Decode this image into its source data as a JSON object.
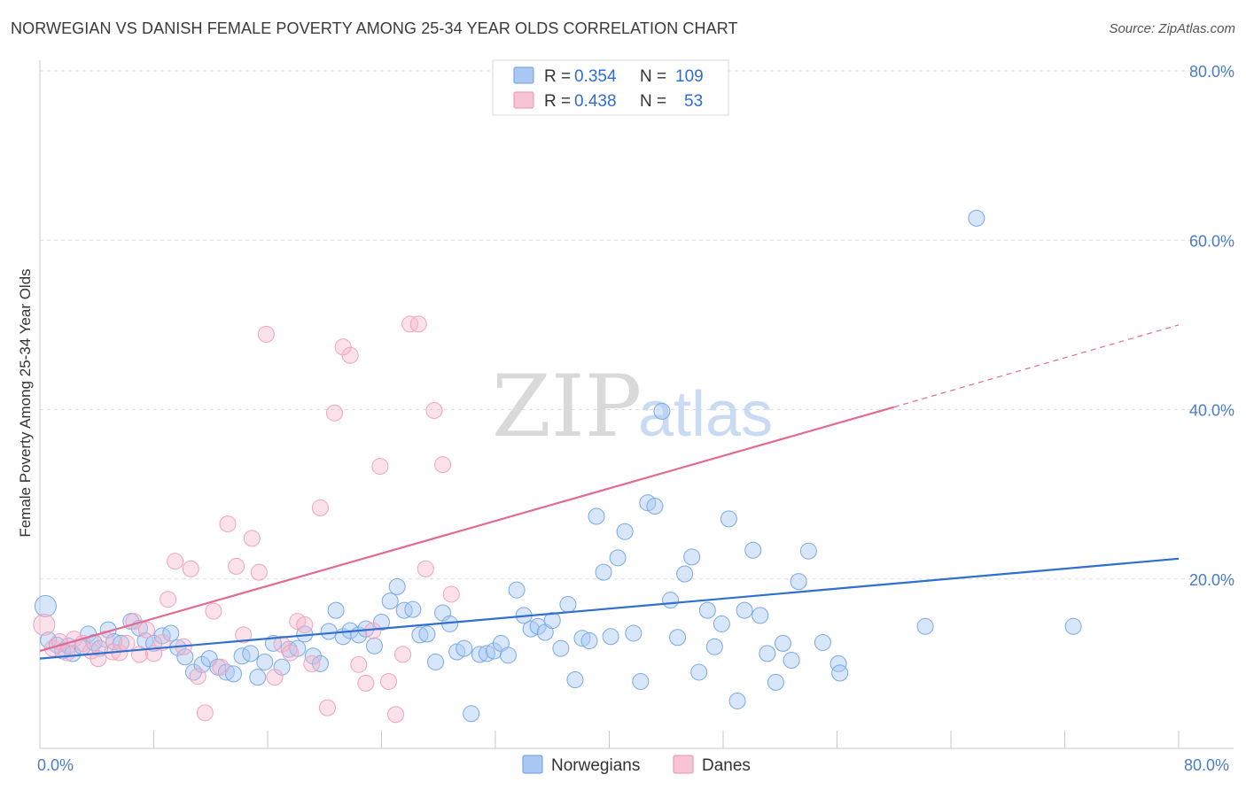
{
  "title": "NORWEGIAN VS DANISH FEMALE POVERTY AMONG 25-34 YEAR OLDS CORRELATION CHART",
  "source": "Source: ZipAtlas.com",
  "watermark": {
    "zip": "ZIP",
    "atlas": "atlas"
  },
  "chart_data": {
    "type": "scatter",
    "ylabel": "Female Poverty Among 25-34 Year Olds",
    "xlim": [
      0,
      80
    ],
    "ylim": [
      0,
      80
    ],
    "x_tick_labels": [
      "0.0%",
      "80.0%"
    ],
    "y_ticks": [
      20,
      40,
      60,
      80
    ],
    "y_tick_labels": [
      "20.0%",
      "40.0%",
      "60.0%",
      "80.0%"
    ],
    "grid": true,
    "legend_top": [
      {
        "r_label": "R =",
        "r_value": "0.354",
        "n_label": "N =",
        "n_value": "109",
        "color": "#a9c8f3"
      },
      {
        "r_label": "R =",
        "r_value": "0.438",
        "n_label": "N =",
        "n_value": "53",
        "color": "#f6b6cb"
      }
    ],
    "series": [
      {
        "name": "Norwegians",
        "color": "#7aa9e6",
        "line_color": "#2f6fd0",
        "trend": {
          "x0": 0,
          "y0": 10.6,
          "x1": 80,
          "y1": 22.4
        },
        "points": [
          [
            0.4,
            16.8
          ],
          [
            0.6,
            12.8
          ],
          [
            1.2,
            12.2
          ],
          [
            1.6,
            11.5
          ],
          [
            2.0,
            12.1
          ],
          [
            2.3,
            11.2
          ],
          [
            3.0,
            12.0
          ],
          [
            3.4,
            13.5
          ],
          [
            3.8,
            12.5
          ],
          [
            4.2,
            11.8
          ],
          [
            4.8,
            14.0
          ],
          [
            5.2,
            12.6
          ],
          [
            5.7,
            12.4
          ],
          [
            6.4,
            15.0
          ],
          [
            7.0,
            14.2
          ],
          [
            7.4,
            12.7
          ],
          [
            8.0,
            12.4
          ],
          [
            8.6,
            13.3
          ],
          [
            9.2,
            13.6
          ],
          [
            9.7,
            11.9
          ],
          [
            10.2,
            10.8
          ],
          [
            10.8,
            9.0
          ],
          [
            11.4,
            9.9
          ],
          [
            11.9,
            10.6
          ],
          [
            12.5,
            9.6
          ],
          [
            13.1,
            9.0
          ],
          [
            13.6,
            8.8
          ],
          [
            14.2,
            10.9
          ],
          [
            14.8,
            11.2
          ],
          [
            15.3,
            8.4
          ],
          [
            15.8,
            10.2
          ],
          [
            16.4,
            12.4
          ],
          [
            17.0,
            9.6
          ],
          [
            17.5,
            11.7
          ],
          [
            18.1,
            11.8
          ],
          [
            18.6,
            13.5
          ],
          [
            19.2,
            10.9
          ],
          [
            19.7,
            10.0
          ],
          [
            20.3,
            13.8
          ],
          [
            20.8,
            16.3
          ],
          [
            21.3,
            13.2
          ],
          [
            21.8,
            13.9
          ],
          [
            22.4,
            13.4
          ],
          [
            22.9,
            14.1
          ],
          [
            23.5,
            12.1
          ],
          [
            24.0,
            14.9
          ],
          [
            24.6,
            17.4
          ],
          [
            25.1,
            19.1
          ],
          [
            25.6,
            16.3
          ],
          [
            26.2,
            16.4
          ],
          [
            26.7,
            13.4
          ],
          [
            27.2,
            13.5
          ],
          [
            27.8,
            10.2
          ],
          [
            28.3,
            16.0
          ],
          [
            28.8,
            14.7
          ],
          [
            29.3,
            11.4
          ],
          [
            29.8,
            11.8
          ],
          [
            30.3,
            4.1
          ],
          [
            30.9,
            11.1
          ],
          [
            31.4,
            11.2
          ],
          [
            31.9,
            11.5
          ],
          [
            32.4,
            12.4
          ],
          [
            32.9,
            11.0
          ],
          [
            33.5,
            18.7
          ],
          [
            34.0,
            15.7
          ],
          [
            34.5,
            14.1
          ],
          [
            35.0,
            14.4
          ],
          [
            35.5,
            13.7
          ],
          [
            36.0,
            15.1
          ],
          [
            36.6,
            11.8
          ],
          [
            37.1,
            17.0
          ],
          [
            37.6,
            8.1
          ],
          [
            38.1,
            13.0
          ],
          [
            38.6,
            12.7
          ],
          [
            39.1,
            27.4
          ],
          [
            39.6,
            20.8
          ],
          [
            40.1,
            13.2
          ],
          [
            40.6,
            22.5
          ],
          [
            41.1,
            25.6
          ],
          [
            41.7,
            13.6
          ],
          [
            42.2,
            7.9
          ],
          [
            42.7,
            29.0
          ],
          [
            43.2,
            28.6
          ],
          [
            43.7,
            39.8
          ],
          [
            44.3,
            17.5
          ],
          [
            44.8,
            13.1
          ],
          [
            45.3,
            20.6
          ],
          [
            45.8,
            22.6
          ],
          [
            46.3,
            9.0
          ],
          [
            46.9,
            16.3
          ],
          [
            47.4,
            12.0
          ],
          [
            47.9,
            14.7
          ],
          [
            48.4,
            27.1
          ],
          [
            49.0,
            5.6
          ],
          [
            49.5,
            16.3
          ],
          [
            50.1,
            23.4
          ],
          [
            50.6,
            15.7
          ],
          [
            51.1,
            11.2
          ],
          [
            51.7,
            7.8
          ],
          [
            52.2,
            12.4
          ],
          [
            52.8,
            10.4
          ],
          [
            53.3,
            19.7
          ],
          [
            54.0,
            23.3
          ],
          [
            55.0,
            12.5
          ],
          [
            56.1,
            10.0
          ],
          [
            56.2,
            8.9
          ],
          [
            62.2,
            14.4
          ],
          [
            65.8,
            62.6
          ],
          [
            72.6,
            14.4
          ]
        ]
      },
      {
        "name": "Danes",
        "color": "#f3a2bd",
        "line_color": "#e06b94",
        "trend": {
          "x0": 0,
          "y0": 11.5,
          "x1": 60,
          "y1": 40.3
        },
        "trend_dashed_to": {
          "x": 80,
          "y": 50.0
        },
        "points": [
          [
            0.3,
            14.6
          ],
          [
            0.9,
            11.8
          ],
          [
            1.4,
            12.6
          ],
          [
            1.9,
            11.3
          ],
          [
            2.4,
            12.9
          ],
          [
            3.0,
            12.4
          ],
          [
            3.6,
            11.5
          ],
          [
            4.1,
            10.6
          ],
          [
            4.6,
            12.9
          ],
          [
            5.1,
            11.4
          ],
          [
            5.6,
            11.3
          ],
          [
            6.1,
            12.4
          ],
          [
            6.6,
            15.0
          ],
          [
            7.0,
            11.1
          ],
          [
            7.5,
            14.0
          ],
          [
            8.0,
            11.2
          ],
          [
            8.6,
            12.5
          ],
          [
            9.0,
            17.6
          ],
          [
            9.5,
            22.1
          ],
          [
            10.1,
            12.0
          ],
          [
            10.6,
            21.2
          ],
          [
            11.1,
            8.5
          ],
          [
            11.6,
            4.2
          ],
          [
            12.2,
            16.2
          ],
          [
            12.7,
            9.6
          ],
          [
            13.2,
            26.5
          ],
          [
            13.8,
            21.5
          ],
          [
            14.3,
            13.4
          ],
          [
            14.9,
            24.8
          ],
          [
            15.4,
            20.8
          ],
          [
            15.9,
            48.9
          ],
          [
            16.5,
            8.4
          ],
          [
            17.0,
            12.3
          ],
          [
            17.6,
            11.3
          ],
          [
            18.1,
            15.0
          ],
          [
            18.6,
            14.6
          ],
          [
            19.1,
            10.0
          ],
          [
            19.7,
            28.4
          ],
          [
            20.2,
            4.8
          ],
          [
            20.7,
            39.6
          ],
          [
            21.3,
            47.4
          ],
          [
            21.8,
            46.4
          ],
          [
            22.4,
            9.9
          ],
          [
            22.9,
            7.7
          ],
          [
            23.4,
            13.9
          ],
          [
            23.9,
            33.3
          ],
          [
            24.5,
            7.9
          ],
          [
            25.0,
            4.0
          ],
          [
            25.5,
            11.1
          ],
          [
            26.0,
            50.1
          ],
          [
            26.6,
            50.1
          ],
          [
            27.1,
            21.2
          ],
          [
            27.7,
            39.9
          ],
          [
            28.3,
            33.5
          ],
          [
            28.9,
            18.2
          ]
        ]
      }
    ]
  }
}
